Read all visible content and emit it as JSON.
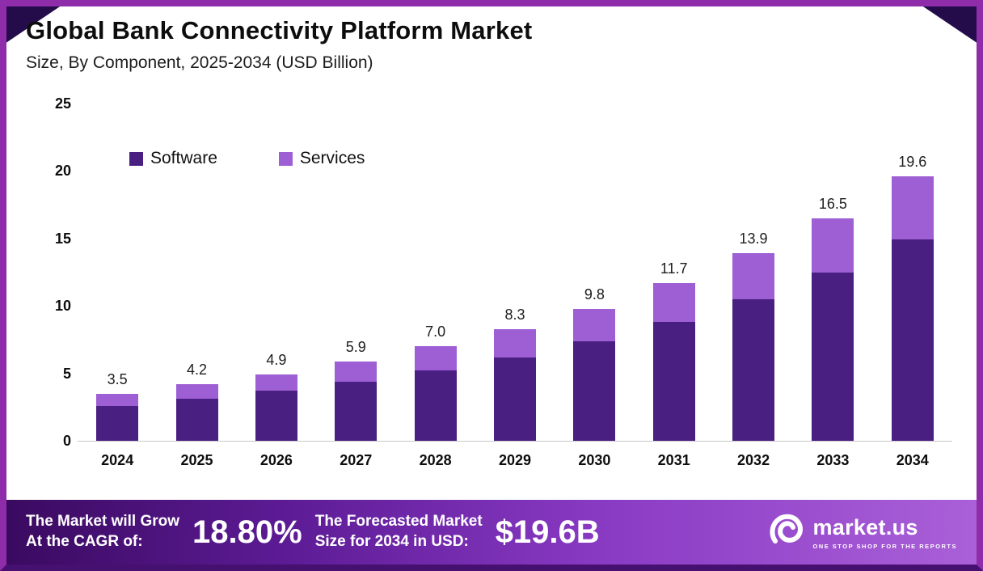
{
  "header": {
    "title": "Global Bank Connectivity Platform Market",
    "subtitle": "Size, By Component, 2025-2034 (USD Billion)"
  },
  "chart_data": {
    "type": "bar",
    "stacked": true,
    "title": "Global Bank Connectivity Platform Market",
    "subtitle": "Size, By Component, 2025-2034 (USD Billion)",
    "unit": "USD Billion",
    "categories": [
      "2024",
      "2025",
      "2026",
      "2027",
      "2028",
      "2029",
      "2030",
      "2031",
      "2032",
      "2033",
      "2034"
    ],
    "series": [
      {
        "name": "Software",
        "color": "#4A1F82",
        "values": [
          2.6,
          3.1,
          3.7,
          4.4,
          5.2,
          6.2,
          7.4,
          8.8,
          10.5,
          12.5,
          14.9
        ]
      },
      {
        "name": "Services",
        "color": "#9E5FD5",
        "values": [
          0.9,
          1.1,
          1.2,
          1.5,
          1.8,
          2.1,
          2.4,
          2.9,
          3.4,
          4.0,
          4.7
        ]
      }
    ],
    "totals": [
      3.5,
      4.2,
      4.9,
      5.9,
      7.0,
      8.3,
      9.8,
      11.7,
      13.9,
      16.5,
      19.6
    ],
    "ylim": [
      0,
      25
    ],
    "yticks": [
      0,
      5,
      10,
      15,
      20,
      25
    ],
    "grid": false,
    "legend_position": "top-left-inside"
  },
  "footer": {
    "cagr_label_line1": "The Market will Grow",
    "cagr_label_line2": "At the CAGR of:",
    "cagr_value": "18.80%",
    "forecast_label_line1": "The Forecasted Market",
    "forecast_label_line2": "Size for 2034 in USD:",
    "forecast_value": "$19.6B",
    "brand": {
      "name": "market.us",
      "tagline": "ONE STOP SHOP FOR THE REPORTS"
    }
  },
  "colors": {
    "border": "#8F2CA9",
    "border_bottom": "#45106F",
    "corner_accent": "#240C4A",
    "software": "#4A1F82",
    "services": "#9E5FD5",
    "banner_gradient_start": "#3A0A60",
    "banner_gradient_end": "#AA60D8",
    "baseline": "#C8C8C8"
  }
}
